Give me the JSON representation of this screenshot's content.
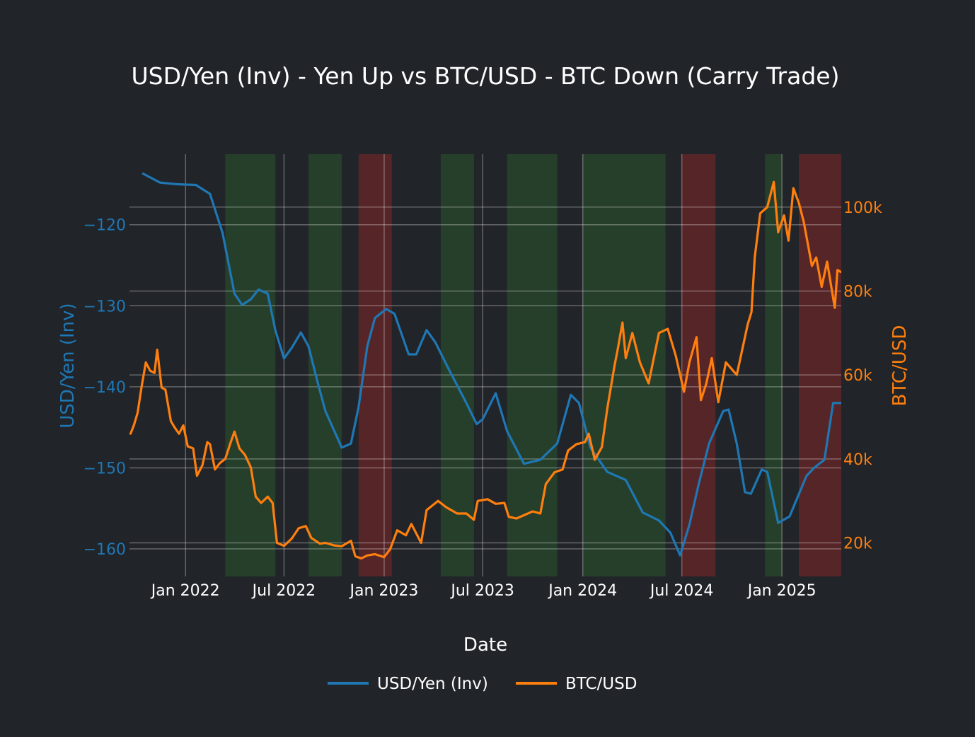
{
  "chart_data": {
    "type": "line",
    "title": "USD/Yen (Inv) - Yen Up vs BTC/USD - BTC Down (Carry Trade)",
    "xlabel": "Date",
    "ylabel_left": "USD/Yen (Inv)",
    "ylabel_right": "BTC/USD",
    "x_range": [
      "2021-09-20",
      "2025-04-20"
    ],
    "x_ticks": [
      {
        "date": "2022-01-01",
        "label": "Jan 2022"
      },
      {
        "date": "2022-07-01",
        "label": "Jul 2022"
      },
      {
        "date": "2023-01-01",
        "label": "Jan 2023"
      },
      {
        "date": "2023-07-01",
        "label": "Jul 2023"
      },
      {
        "date": "2024-01-01",
        "label": "Jan 2024"
      },
      {
        "date": "2024-07-01",
        "label": "Jul 2024"
      },
      {
        "date": "2025-01-01",
        "label": "Jan 2025"
      }
    ],
    "y_left_range": [
      -163.4,
      -111.3
    ],
    "y_left_ticks": [
      {
        "value": -120,
        "label": "−120"
      },
      {
        "value": -130,
        "label": "−130"
      },
      {
        "value": -140,
        "label": "−140"
      },
      {
        "value": -150,
        "label": "−150"
      },
      {
        "value": -160,
        "label": "−160"
      }
    ],
    "y_right_range": [
      12000,
      112600
    ],
    "y_right_ticks": [
      {
        "value": 20000,
        "label": "20k"
      },
      {
        "value": 40000,
        "label": "40k"
      },
      {
        "value": 60000,
        "label": "60k"
      },
      {
        "value": 80000,
        "label": "80k"
      },
      {
        "value": 100000,
        "label": "100k"
      }
    ],
    "grid": true,
    "legend_position": "bottom-center",
    "shaded_regions": [
      {
        "start": "2022-03-15",
        "end": "2022-06-15",
        "kind": "green"
      },
      {
        "start": "2022-08-15",
        "end": "2022-10-15",
        "kind": "green"
      },
      {
        "start": "2022-11-15",
        "end": "2023-01-15",
        "kind": "red"
      },
      {
        "start": "2023-04-15",
        "end": "2023-06-15",
        "kind": "green"
      },
      {
        "start": "2023-08-15",
        "end": "2023-11-15",
        "kind": "green"
      },
      {
        "start": "2024-01-01",
        "end": "2024-06-01",
        "kind": "green"
      },
      {
        "start": "2024-07-01",
        "end": "2024-09-01",
        "kind": "red"
      },
      {
        "start": "2024-12-01",
        "end": "2025-01-01",
        "kind": "green"
      },
      {
        "start": "2025-02-01",
        "end": "2025-04-20",
        "kind": "red"
      }
    ],
    "series": [
      {
        "name": "USD/Yen (Inv)",
        "axis": "left",
        "color": "#1f77b4",
        "points": [
          [
            "2021-10-15",
            -113.7
          ],
          [
            "2021-11-15",
            -114.8
          ],
          [
            "2021-12-15",
            -115.0
          ],
          [
            "2022-01-20",
            -115.1
          ],
          [
            "2022-02-15",
            -116.2
          ],
          [
            "2022-03-10",
            -121.0
          ],
          [
            "2022-04-01",
            -128.5
          ],
          [
            "2022-04-15",
            -129.9
          ],
          [
            "2022-05-01",
            -129.2
          ],
          [
            "2022-05-15",
            -128.0
          ],
          [
            "2022-06-01",
            -128.5
          ],
          [
            "2022-06-15",
            -133.0
          ],
          [
            "2022-07-01",
            -136.5
          ],
          [
            "2022-07-15",
            -135.2
          ],
          [
            "2022-08-01",
            -133.3
          ],
          [
            "2022-08-15",
            -135.0
          ],
          [
            "2022-09-01",
            -139.5
          ],
          [
            "2022-09-15",
            -143.0
          ],
          [
            "2022-10-15",
            -147.5
          ],
          [
            "2022-11-01",
            -147.0
          ],
          [
            "2022-11-15",
            -142.5
          ],
          [
            "2022-12-01",
            -135.0
          ],
          [
            "2022-12-15",
            -131.5
          ],
          [
            "2023-01-05",
            -130.4
          ],
          [
            "2023-01-20",
            -131.0
          ],
          [
            "2023-02-15",
            -136.0
          ],
          [
            "2023-03-01",
            -136.0
          ],
          [
            "2023-03-20",
            -133.0
          ],
          [
            "2023-04-05",
            -134.5
          ],
          [
            "2023-05-01",
            -138.0
          ],
          [
            "2023-06-01",
            -142.0
          ],
          [
            "2023-06-20",
            -144.6
          ],
          [
            "2023-07-01",
            -144.0
          ],
          [
            "2023-07-25",
            -140.8
          ],
          [
            "2023-08-15",
            -145.5
          ],
          [
            "2023-09-15",
            -149.5
          ],
          [
            "2023-10-15",
            -149.0
          ],
          [
            "2023-11-15",
            -147.0
          ],
          [
            "2023-12-10",
            -141.0
          ],
          [
            "2023-12-25",
            -142.0
          ],
          [
            "2024-01-15",
            -147.5
          ],
          [
            "2024-02-15",
            -150.5
          ],
          [
            "2024-03-20",
            -151.5
          ],
          [
            "2024-04-20",
            -155.5
          ],
          [
            "2024-05-20",
            -156.5
          ],
          [
            "2024-06-10",
            -158.0
          ],
          [
            "2024-06-28",
            -160.8
          ],
          [
            "2024-07-15",
            -157.0
          ],
          [
            "2024-08-01",
            -152.0
          ],
          [
            "2024-08-20",
            -147.0
          ],
          [
            "2024-09-15",
            -143.0
          ],
          [
            "2024-09-25",
            -142.8
          ],
          [
            "2024-10-10",
            -147.0
          ],
          [
            "2024-10-25",
            -153.0
          ],
          [
            "2024-11-05",
            -153.2
          ],
          [
            "2024-11-25",
            -150.2
          ],
          [
            "2024-12-05",
            -150.5
          ],
          [
            "2024-12-25",
            -156.8
          ],
          [
            "2025-01-15",
            -156.0
          ],
          [
            "2025-02-15",
            -151.0
          ],
          [
            "2025-03-01",
            -150.0
          ],
          [
            "2025-03-20",
            -149.0
          ],
          [
            "2025-04-05",
            -142.0
          ],
          [
            "2025-04-20",
            -142.0
          ]
        ]
      },
      {
        "name": "BTC/USD",
        "axis": "right",
        "color": "#ff7f0e",
        "points": [
          [
            "2021-09-22",
            46000
          ],
          [
            "2021-09-28",
            48000
          ],
          [
            "2021-10-05",
            51000
          ],
          [
            "2021-10-12",
            57000
          ],
          [
            "2021-10-20",
            63000
          ],
          [
            "2021-10-28",
            61000
          ],
          [
            "2021-11-05",
            60500
          ],
          [
            "2021-11-10",
            66000
          ],
          [
            "2021-11-18",
            57000
          ],
          [
            "2021-11-25",
            56500
          ],
          [
            "2021-12-05",
            49000
          ],
          [
            "2021-12-12",
            47500
          ],
          [
            "2021-12-20",
            46000
          ],
          [
            "2021-12-28",
            48000
          ],
          [
            "2022-01-05",
            43000
          ],
          [
            "2022-01-15",
            42500
          ],
          [
            "2022-01-22",
            36000
          ],
          [
            "2022-02-01",
            38500
          ],
          [
            "2022-02-10",
            44000
          ],
          [
            "2022-02-15",
            43500
          ],
          [
            "2022-02-24",
            37500
          ],
          [
            "2022-03-05",
            39000
          ],
          [
            "2022-03-15",
            40000
          ],
          [
            "2022-03-25",
            44000
          ],
          [
            "2022-04-01",
            46500
          ],
          [
            "2022-04-10",
            42500
          ],
          [
            "2022-04-20",
            41000
          ],
          [
            "2022-05-01",
            38000
          ],
          [
            "2022-05-10",
            31000
          ],
          [
            "2022-05-20",
            29500
          ],
          [
            "2022-06-01",
            31000
          ],
          [
            "2022-06-10",
            29500
          ],
          [
            "2022-06-18",
            20000
          ],
          [
            "2022-07-01",
            19300
          ],
          [
            "2022-07-15",
            21000
          ],
          [
            "2022-07-28",
            23500
          ],
          [
            "2022-08-10",
            24000
          ],
          [
            "2022-08-20",
            21200
          ],
          [
            "2022-09-05",
            19800
          ],
          [
            "2022-09-15",
            20000
          ],
          [
            "2022-10-01",
            19400
          ],
          [
            "2022-10-15",
            19200
          ],
          [
            "2022-11-01",
            20500
          ],
          [
            "2022-11-09",
            16800
          ],
          [
            "2022-11-20",
            16300
          ],
          [
            "2022-12-01",
            17000
          ],
          [
            "2022-12-15",
            17300
          ],
          [
            "2023-01-01",
            16600
          ],
          [
            "2023-01-12",
            18500
          ],
          [
            "2023-01-25",
            23000
          ],
          [
            "2023-02-10",
            21800
          ],
          [
            "2023-02-20",
            24500
          ],
          [
            "2023-03-10",
            20000
          ],
          [
            "2023-03-20",
            27800
          ],
          [
            "2023-04-10",
            30000
          ],
          [
            "2023-04-25",
            28500
          ],
          [
            "2023-05-15",
            27000
          ],
          [
            "2023-06-01",
            27000
          ],
          [
            "2023-06-15",
            25500
          ],
          [
            "2023-06-22",
            30000
          ],
          [
            "2023-07-10",
            30400
          ],
          [
            "2023-07-25",
            29300
          ],
          [
            "2023-08-10",
            29500
          ],
          [
            "2023-08-18",
            26200
          ],
          [
            "2023-09-01",
            25800
          ],
          [
            "2023-09-15",
            26600
          ],
          [
            "2023-10-01",
            27500
          ],
          [
            "2023-10-15",
            27000
          ],
          [
            "2023-10-25",
            34000
          ],
          [
            "2023-11-10",
            36800
          ],
          [
            "2023-11-25",
            37500
          ],
          [
            "2023-12-05",
            42000
          ],
          [
            "2023-12-20",
            43500
          ],
          [
            "2024-01-05",
            44000
          ],
          [
            "2024-01-12",
            46000
          ],
          [
            "2024-01-23",
            39800
          ],
          [
            "2024-02-05",
            42800
          ],
          [
            "2024-02-15",
            52000
          ],
          [
            "2024-02-28",
            62000
          ],
          [
            "2024-03-05",
            66000
          ],
          [
            "2024-03-14",
            72500
          ],
          [
            "2024-03-20",
            64000
          ],
          [
            "2024-04-01",
            70000
          ],
          [
            "2024-04-15",
            63000
          ],
          [
            "2024-05-01",
            58000
          ],
          [
            "2024-05-20",
            70000
          ],
          [
            "2024-06-05",
            71000
          ],
          [
            "2024-06-20",
            64500
          ],
          [
            "2024-07-05",
            56000
          ],
          [
            "2024-07-15",
            63000
          ],
          [
            "2024-07-28",
            69000
          ],
          [
            "2024-08-05",
            54000
          ],
          [
            "2024-08-15",
            58000
          ],
          [
            "2024-08-25",
            64000
          ],
          [
            "2024-09-06",
            53500
          ],
          [
            "2024-09-20",
            63000
          ],
          [
            "2024-10-10",
            60000
          ],
          [
            "2024-10-30",
            72000
          ],
          [
            "2024-11-06",
            75000
          ],
          [
            "2024-11-12",
            88000
          ],
          [
            "2024-11-22",
            98500
          ],
          [
            "2024-12-05",
            100000
          ],
          [
            "2024-12-17",
            106000
          ],
          [
            "2024-12-25",
            94000
          ],
          [
            "2025-01-05",
            98000
          ],
          [
            "2025-01-13",
            92000
          ],
          [
            "2025-01-22",
            104500
          ],
          [
            "2025-02-01",
            101000
          ],
          [
            "2025-02-10",
            96500
          ],
          [
            "2025-02-25",
            86000
          ],
          [
            "2025-03-05",
            88000
          ],
          [
            "2025-03-15",
            81000
          ],
          [
            "2025-03-25",
            87000
          ],
          [
            "2025-04-08",
            76000
          ],
          [
            "2025-04-13",
            85000
          ],
          [
            "2025-04-20",
            84500
          ]
        ]
      }
    ]
  }
}
